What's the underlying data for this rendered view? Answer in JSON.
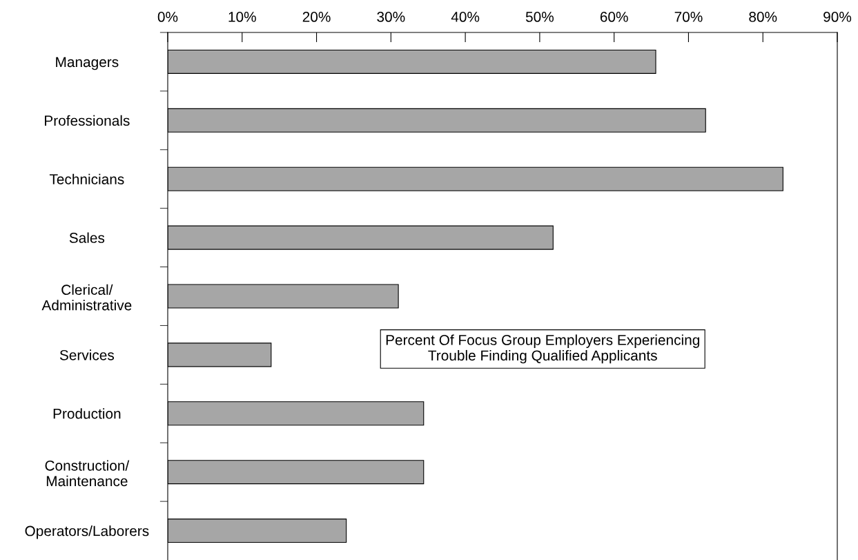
{
  "chart_data": {
    "type": "bar",
    "orientation": "horizontal",
    "title": "Percent Of Focus Group Employers Experiencing\nTrouble Finding Qualified Applicants",
    "categories": [
      "Managers",
      "Professionals",
      "Technicians",
      "Sales",
      "Clerical/\nAdministrative",
      "Services",
      "Production",
      "Construction/\nMaintenance",
      "Operators/Laborers"
    ],
    "values": [
      65.6,
      72.3,
      82.7,
      51.8,
      31.0,
      13.9,
      34.4,
      34.4,
      24.0
    ],
    "color": "#a6a6a6",
    "xlim": [
      0,
      90
    ],
    "xticks": [
      {
        "value": 0,
        "label": "0%"
      },
      {
        "value": 10,
        "label": "10%"
      },
      {
        "value": 20,
        "label": "20%"
      },
      {
        "value": 30,
        "label": "30%"
      },
      {
        "value": 40,
        "label": "40%"
      },
      {
        "value": 50,
        "label": "50%"
      },
      {
        "value": 60,
        "label": "60%"
      },
      {
        "value": 70,
        "label": "70%"
      },
      {
        "value": 80,
        "label": "80%"
      },
      {
        "value": 90,
        "label": "90%"
      }
    ],
    "grid": false
  }
}
